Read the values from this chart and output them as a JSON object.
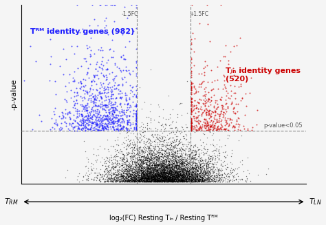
{
  "title": "",
  "xlabel": "log₂(FC) Resting Tₗₙ / Resting Tᴿᴹ",
  "ylabel": "-p-value",
  "fc_threshold": 1.5,
  "pval_threshold": 0.05,
  "n_trm": 982,
  "n_tln": 520,
  "total_points": 8000,
  "xlim": [
    -8,
    8
  ],
  "ylim": [
    -0.05,
    4.5
  ],
  "bg_color": "#f5f5f5",
  "grid_color": "#ffffff",
  "blue_color": "#1a1aff",
  "red_color": "#cc0000",
  "black_color": "#000000",
  "dashed_line_color": "#888888",
  "pval_line_color": "#888888",
  "arrow_color": "#000000",
  "label_trm": "Tᴿᴹ identity genes (982)",
  "label_tln": "Tₗₙ identity genes\n(520)",
  "pval_label": "p-value<0.05",
  "fc_label_left": "-1.5FC",
  "fc_label_right": "+1.5FC",
  "seed": 42
}
